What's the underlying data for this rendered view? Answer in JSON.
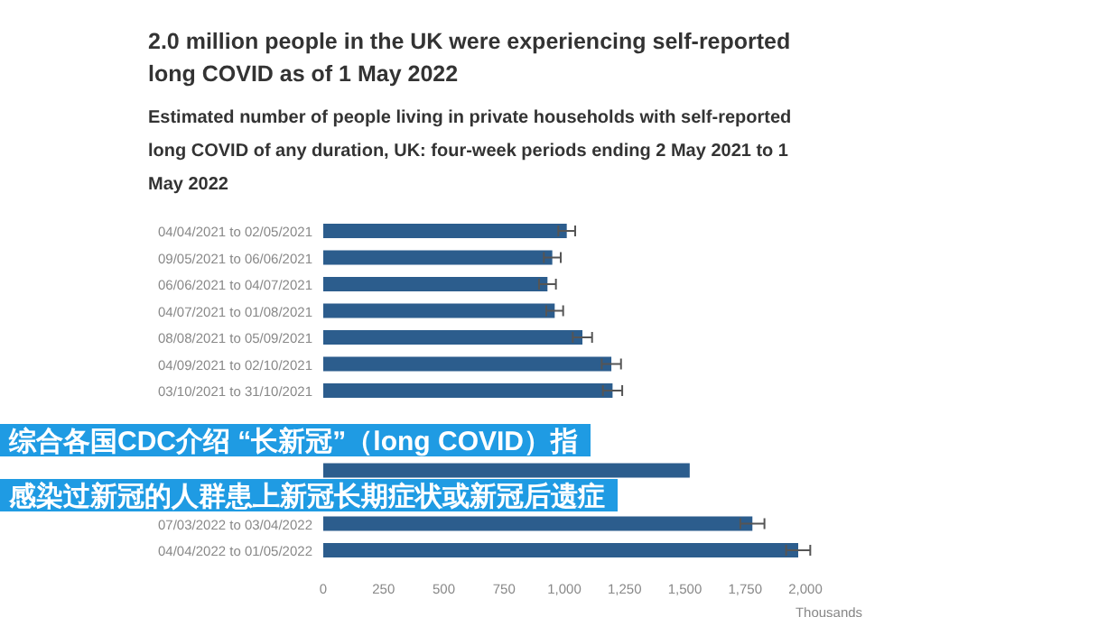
{
  "chart_data": {
    "type": "bar",
    "orientation": "horizontal",
    "title": "2.0 million people in the UK were experiencing self-reported long COVID as of 1 May 2022",
    "subtitle": "Estimated number of people living in private households with self-reported long COVID of any duration, UK: four-week periods ending 2 May 2021 to 1 May 2022",
    "xlabel": "Thousands",
    "categories": [
      "04/04/2021 to 02/05/2021",
      "09/05/2021 to 06/06/2021",
      "06/06/2021 to 04/07/2021",
      "04/07/2021 to 01/08/2021",
      "08/08/2021 to 05/09/2021",
      "04/09/2021 to 02/10/2021",
      "03/10/2021 to 31/10/2021",
      null,
      null,
      null,
      null,
      "07/03/2022 to 03/04/2022",
      "04/04/2022 to 01/05/2022"
    ],
    "values": [
      1010,
      950,
      930,
      960,
      1075,
      1195,
      1200,
      null,
      null,
      1520,
      null,
      1780,
      1970
    ],
    "errors": [
      35,
      35,
      35,
      35,
      40,
      40,
      40,
      null,
      null,
      null,
      null,
      50,
      50
    ],
    "color": "#2c5d8d",
    "xlim": [
      0,
      2000
    ],
    "xticks": [
      0,
      250,
      500,
      750,
      {
        "value": 1000,
        "label": "1,000"
      },
      {
        "value": 1250,
        "label": "1,250"
      },
      {
        "value": 1500,
        "label": "1,500"
      },
      {
        "value": 1750,
        "label": "1,750"
      },
      {
        "value": 2000,
        "label": "2,000"
      }
    ],
    "annotations": [
      "综合各国CDC介绍 “长新冠”（long COVID）指",
      "感染过新冠的人群患上新冠长期症状或新冠后遗症"
    ],
    "grid": false
  }
}
